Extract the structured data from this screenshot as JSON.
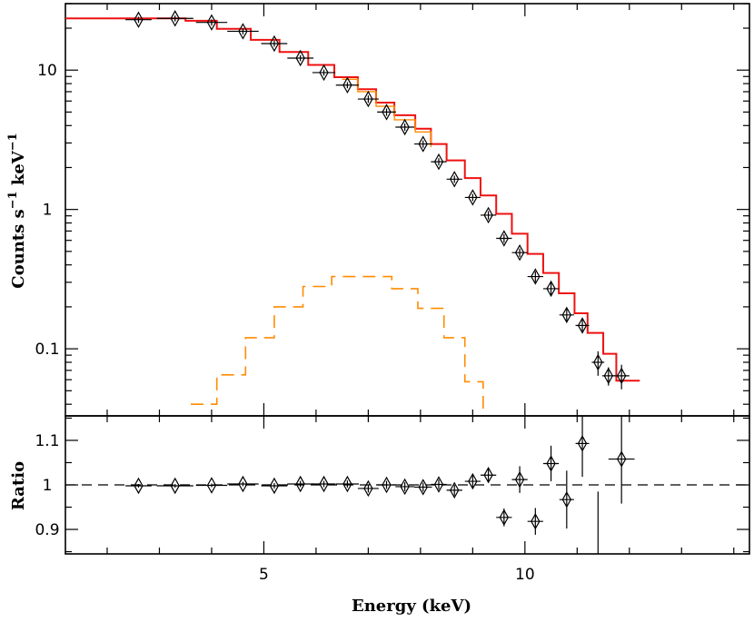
{
  "chart_data": [
    {
      "type": "line",
      "role": "spectrum",
      "xlabel": "",
      "ylabel": "Counts s-1 keV-1",
      "ylabel_parts": {
        "base": "Counts s",
        "exp1": "−1",
        "mid": " keV",
        "exp2": "−1"
      },
      "yscale": "log",
      "xlim": [
        1.2,
        14.3
      ],
      "ylim": [
        0.033,
        30
      ],
      "yticks": [
        {
          "value": 0.1,
          "label": "0.1"
        },
        {
          "value": 1,
          "label": "1"
        },
        {
          "value": 10,
          "label": "10"
        }
      ],
      "data_points": {
        "x": [
          2.6,
          3.3,
          4.0,
          4.6,
          5.2,
          5.7,
          6.15,
          6.6,
          7.0,
          7.35,
          7.7,
          8.05,
          8.35,
          8.65,
          9.0,
          9.3,
          9.6,
          9.9,
          10.2,
          10.5,
          10.8,
          11.1,
          11.4,
          11.6,
          11.85
        ],
        "y": [
          23,
          23.5,
          22,
          19,
          15.5,
          12.2,
          9.6,
          7.8,
          6.2,
          5.0,
          3.9,
          2.95,
          2.2,
          1.65,
          1.22,
          0.91,
          0.62,
          0.49,
          0.33,
          0.27,
          0.175,
          0.147,
          0.08,
          0.064,
          0.064
        ],
        "xerr": [
          0.25,
          0.35,
          0.3,
          0.3,
          0.25,
          0.25,
          0.22,
          0.22,
          0.2,
          0.18,
          0.18,
          0.17,
          0.15,
          0.15,
          0.15,
          0.15,
          0.15,
          0.15,
          0.15,
          0.15,
          0.14,
          0.13,
          0.12,
          0.12,
          0.15
        ],
        "yerr_frac": [
          0.05,
          0.05,
          0.05,
          0.05,
          0.05,
          0.05,
          0.05,
          0.05,
          0.06,
          0.06,
          0.06,
          0.06,
          0.06,
          0.06,
          0.06,
          0.07,
          0.07,
          0.07,
          0.09,
          0.1,
          0.12,
          0.12,
          0.2,
          0.15,
          0.2
        ]
      },
      "series": [
        {
          "name": "",
          "style": "model-total",
          "color": "#ee1111",
          "steps": [
            [
              1.0,
              23.5
            ],
            [
              2.7,
              23.5
            ],
            [
              3.5,
              22.6
            ],
            [
              4.1,
              19.8
            ],
            [
              4.75,
              16.5
            ],
            [
              5.3,
              13.5
            ],
            [
              5.85,
              10.9
            ],
            [
              6.35,
              8.9
            ],
            [
              6.8,
              7.3
            ],
            [
              7.15,
              5.85
            ],
            [
              7.5,
              4.75
            ],
            [
              7.9,
              3.8
            ],
            [
              8.2,
              2.95
            ],
            [
              8.5,
              2.25
            ],
            [
              8.85,
              1.68
            ],
            [
              9.15,
              1.26
            ],
            [
              9.45,
              0.93
            ],
            [
              9.75,
              0.67
            ],
            [
              10.05,
              0.48
            ],
            [
              10.35,
              0.35
            ],
            [
              10.65,
              0.25
            ],
            [
              10.95,
              0.18
            ],
            [
              11.2,
              0.13
            ],
            [
              11.5,
              0.092
            ],
            [
              11.75,
              0.059
            ],
            [
              12.2,
              0.059
            ]
          ]
        },
        {
          "name": "",
          "style": "component-continuum",
          "color": "#ff8c00",
          "steps": [
            [
              6.5,
              8.6
            ],
            [
              6.8,
              7.0
            ],
            [
              7.15,
              5.5
            ],
            [
              7.5,
              4.4
            ],
            [
              7.9,
              3.6
            ],
            [
              8.2,
              2.8
            ]
          ]
        },
        {
          "name": "",
          "style": "component-line",
          "color": "#ff8c00",
          "steps": [
            [
              3.6,
              0.04
            ],
            [
              4.1,
              0.065
            ],
            [
              4.65,
              0.12
            ],
            [
              5.2,
              0.2
            ],
            [
              5.75,
              0.28
            ],
            [
              6.3,
              0.33
            ],
            [
              7.05,
              0.33
            ],
            [
              7.45,
              0.27
            ],
            [
              7.95,
              0.195
            ],
            [
              8.45,
              0.12
            ],
            [
              8.85,
              0.058
            ],
            [
              9.2,
              0.033
            ]
          ]
        }
      ]
    },
    {
      "type": "scatter",
      "role": "ratio",
      "xlabel": "Energy (keV)",
      "ylabel": "Ratio",
      "xlim": [
        1.2,
        14.3
      ],
      "ylim": [
        0.845,
        1.155
      ],
      "xticks": [
        {
          "value": 5,
          "label": "5"
        },
        {
          "value": 10,
          "label": "10"
        }
      ],
      "yticks": [
        {
          "value": 0.9,
          "label": "0.9"
        },
        {
          "value": 1,
          "label": "1"
        },
        {
          "value": 1.1,
          "label": "1.1"
        }
      ],
      "reference_line": 1,
      "data_points": {
        "x": [
          2.6,
          3.3,
          4.0,
          4.6,
          5.2,
          5.7,
          6.15,
          6.6,
          7.0,
          7.35,
          7.7,
          8.05,
          8.35,
          8.65,
          9.0,
          9.3,
          9.6,
          9.9,
          10.2,
          10.5,
          10.8,
          11.1,
          11.4,
          11.6,
          11.85,
          12.2
        ],
        "y": [
          0.998,
          0.998,
          0.999,
          1.002,
          0.998,
          1.002,
          1.002,
          1.002,
          0.992,
          1.0,
          0.996,
          0.995,
          1.001,
          0.988,
          1.008,
          1.022,
          0.927,
          1.012,
          0.918,
          1.048,
          0.967,
          1.093,
          null,
          null,
          1.058,
          null
        ],
        "xerr": [
          0.25,
          0.35,
          0.3,
          0.3,
          0.25,
          0.25,
          0.22,
          0.22,
          0.2,
          0.18,
          0.18,
          0.17,
          0.15,
          0.15,
          0.15,
          0.15,
          0.15,
          0.15,
          0.15,
          0.15,
          0.14,
          0.13,
          0.12,
          0.12,
          0.25,
          0.12
        ],
        "yerr": [
          0.004,
          0.004,
          0.004,
          0.005,
          0.006,
          0.007,
          0.007,
          0.008,
          0.009,
          0.009,
          0.01,
          0.01,
          0.011,
          0.012,
          0.013,
          0.016,
          0.02,
          0.03,
          0.03,
          0.04,
          0.065,
          0.075,
          0.0,
          0.0,
          0.1,
          0.0
        ]
      },
      "extra_errorbars": [
        {
          "x": 11.4,
          "low": 0.845,
          "high": 0.985
        }
      ]
    }
  ]
}
